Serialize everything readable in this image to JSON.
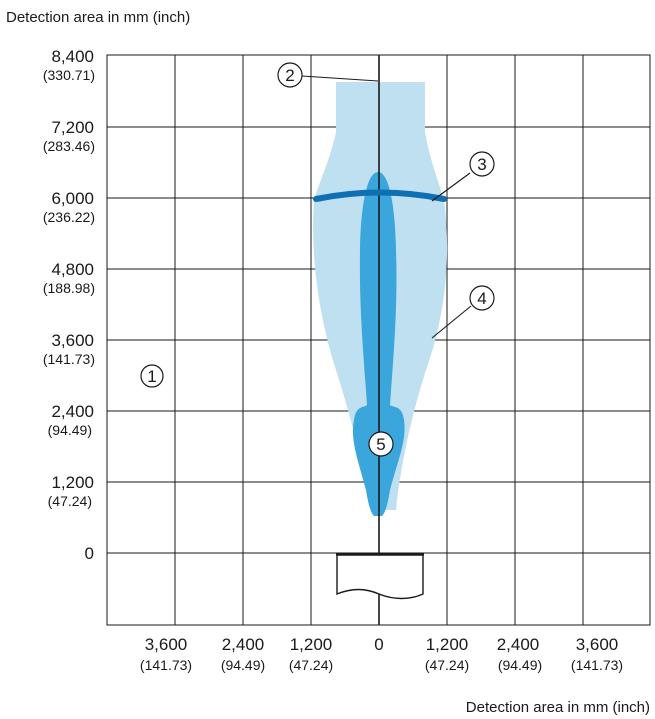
{
  "titles": {
    "top": "Detection area in mm (inch)",
    "bottom": "Detection area in mm (inch)"
  },
  "y_ticks": [
    {
      "mm": "8,400",
      "inch": "(330.71)"
    },
    {
      "mm": "7,200",
      "inch": "(283.46)"
    },
    {
      "mm": "6,000",
      "inch": "(236.22)"
    },
    {
      "mm": "4,800",
      "inch": "(188.98)"
    },
    {
      "mm": "3,600",
      "inch": "(141.73)"
    },
    {
      "mm": "2,400",
      "inch": "(94.49)"
    },
    {
      "mm": "1,200",
      "inch": "(47.24)"
    },
    {
      "mm": "0",
      "inch": ""
    }
  ],
  "x_ticks": [
    {
      "mm": "3,600",
      "inch": "(141.73)"
    },
    {
      "mm": "2,400",
      "inch": "(94.49)"
    },
    {
      "mm": "1,200",
      "inch": "(47.24)"
    },
    {
      "mm": "0",
      "inch": ""
    },
    {
      "mm": "1,200",
      "inch": "(47.24)"
    },
    {
      "mm": "2,400",
      "inch": "(94.49)"
    },
    {
      "mm": "3,600",
      "inch": "(141.73)"
    }
  ],
  "callouts": [
    "①",
    "②",
    "③",
    "④",
    "⑤"
  ],
  "colors": {
    "grid": "#1a1a1a",
    "outer_field": "#bfe0f1",
    "inner_field": "#3aa6dc",
    "arc": "#0e6fb3",
    "text": "#1a1a1a"
  }
}
